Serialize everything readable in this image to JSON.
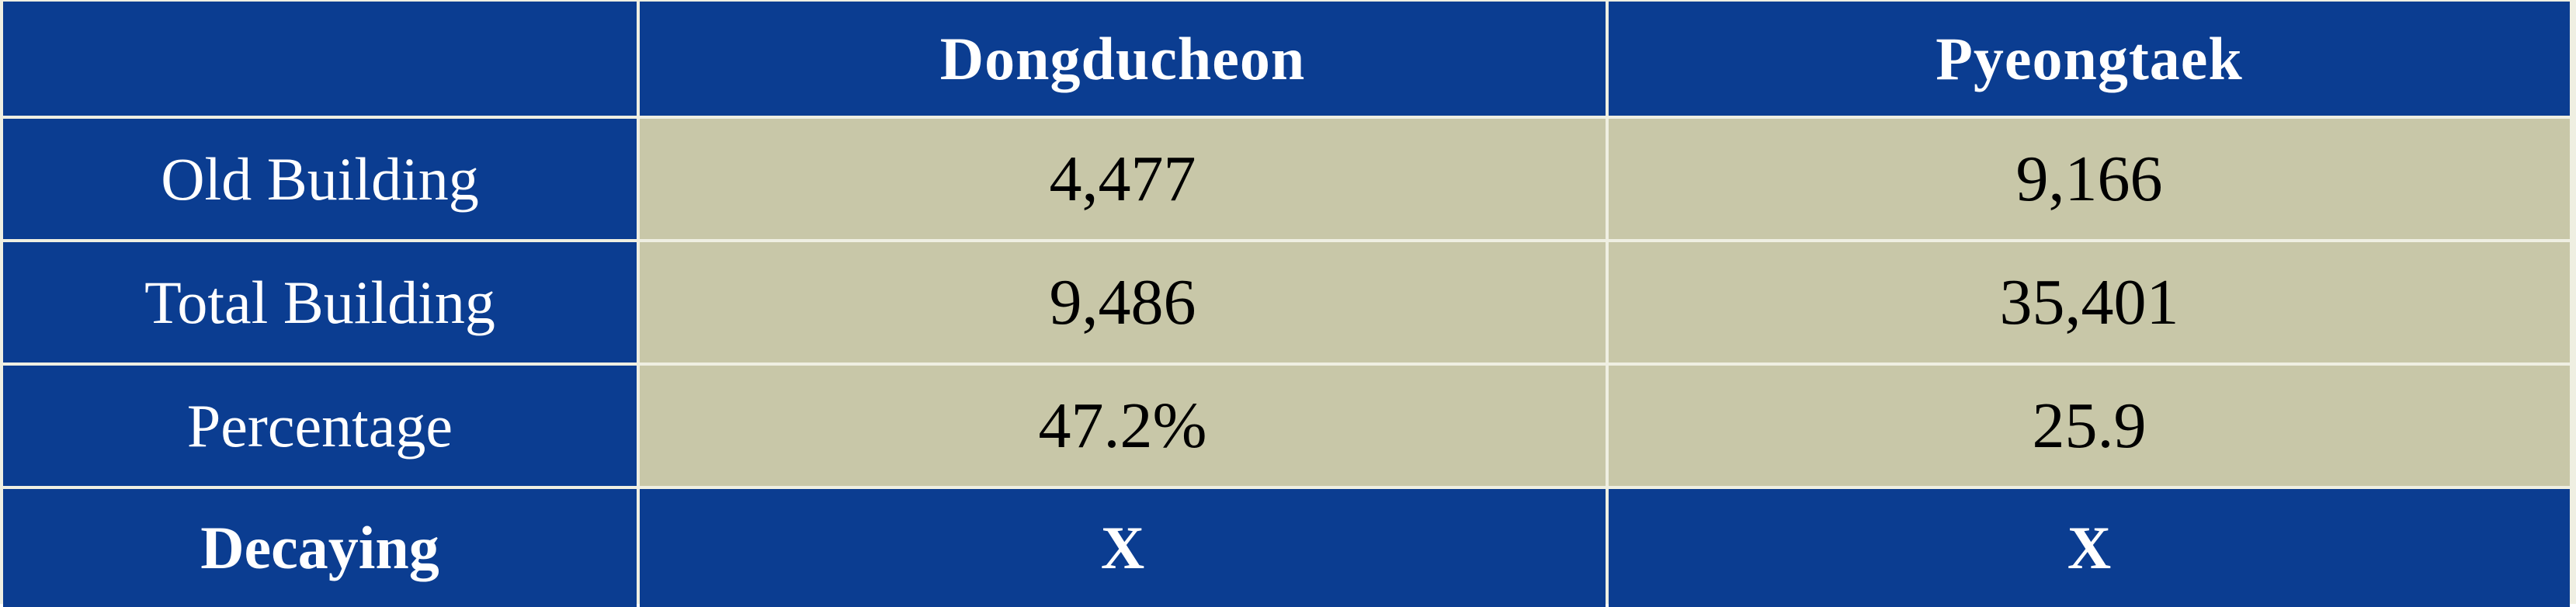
{
  "table": {
    "corner": "",
    "columns": [
      "Dongducheon",
      "Pyeongtaek"
    ],
    "rows": [
      {
        "label": "Old Building",
        "values": [
          "4,477",
          "9,166"
        ]
      },
      {
        "label": "Total Building",
        "values": [
          "9,486",
          "35,401"
        ]
      },
      {
        "label": "Percentage",
        "values": [
          "47.2%",
          "25.9"
        ]
      },
      {
        "label": "Decaying",
        "values": [
          "X",
          "X"
        ]
      }
    ]
  },
  "colors": {
    "header_blue": "#0b3d91",
    "data_tan": "#c8c7a8",
    "gridline": "#efefe2"
  }
}
